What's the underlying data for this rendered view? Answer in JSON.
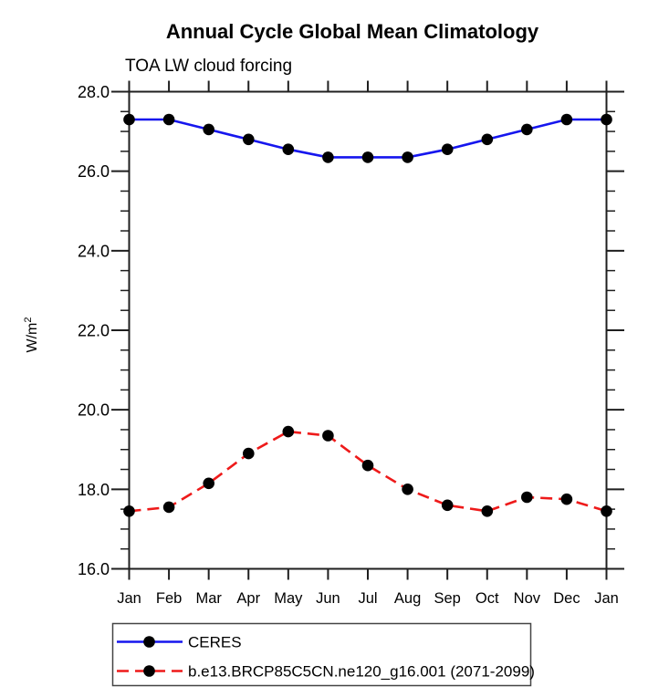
{
  "page": {
    "background_color": "#ffffff",
    "axis_color": "#1f1f1f",
    "text_color": "#000000"
  },
  "chart_data": {
    "type": "line",
    "title": "Annual Cycle Global Mean Climatology",
    "subtitle": "TOA LW cloud forcing",
    "ylabel": "W/m",
    "ylabel_superscript": "2",
    "xlabel": "",
    "categories": [
      "Jan",
      "Feb",
      "Mar",
      "Apr",
      "May",
      "Jun",
      "Jul",
      "Aug",
      "Sep",
      "Oct",
      "Nov",
      "Dec",
      "Jan"
    ],
    "ylim": [
      16.0,
      28.0
    ],
    "ytick_major_interval": 2.0,
    "ytick_minor_interval": 0.5,
    "ytick_major_labels": [
      "16.0",
      "18.0",
      "20.0",
      "22.0",
      "24.0",
      "26.0",
      "28.0"
    ],
    "grid": false,
    "tick_direction": "outward",
    "legend_position": "bottom-left",
    "marker": {
      "shape": "circle",
      "color": "#000000",
      "radius_px": 6.3
    },
    "series": [
      {
        "name": "CERES",
        "color": "#1616ee",
        "line_style": "solid",
        "values": [
          27.3,
          27.3,
          27.05,
          26.8,
          26.55,
          26.35,
          26.35,
          26.35,
          26.55,
          26.8,
          27.05,
          27.3,
          27.3
        ]
      },
      {
        "name": "b.e13.BRCP85C5CN.ne120_g16.001 (2071-2099)",
        "color": "#ee1a1a",
        "line_style": "dashed",
        "values": [
          17.45,
          17.55,
          18.15,
          18.9,
          19.45,
          19.35,
          18.6,
          18.0,
          17.6,
          17.45,
          17.8,
          17.75,
          17.45
        ]
      }
    ]
  }
}
